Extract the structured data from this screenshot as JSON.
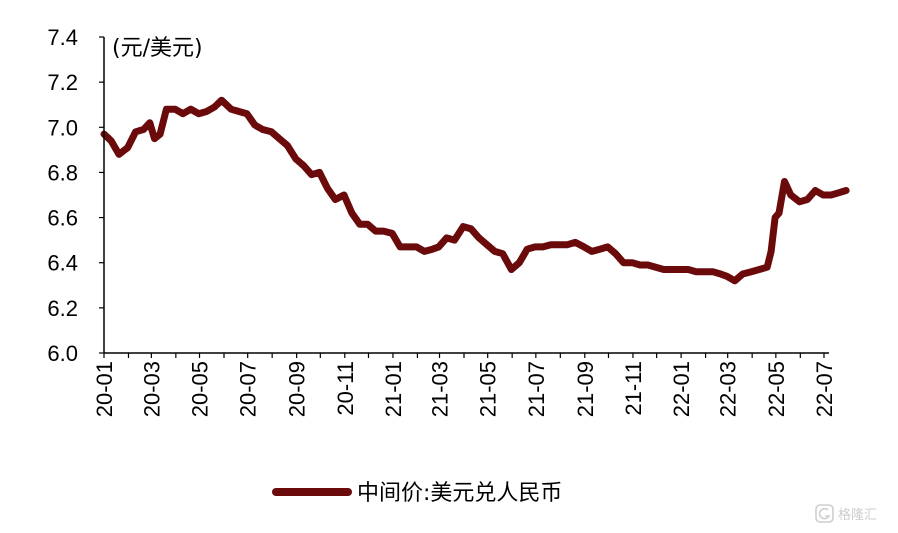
{
  "chart_data": {
    "type": "line",
    "title": "",
    "unit_label": "(元/美元)",
    "xlabel": "",
    "ylabel": "",
    "ylim": [
      6.0,
      7.4
    ],
    "y_ticks": [
      "6.0",
      "6.2",
      "6.4",
      "6.6",
      "6.8",
      "7.0",
      "7.2",
      "7.4"
    ],
    "x_ticks": [
      "20-01",
      "20-03",
      "20-05",
      "20-07",
      "20-09",
      "20-11",
      "21-01",
      "21-03",
      "21-05",
      "21-07",
      "21-09",
      "21-11",
      "22-01",
      "22-03",
      "22-05",
      "22-07"
    ],
    "grid": false,
    "legend_position": "bottom-center",
    "series": [
      {
        "name": "中间价:美元兑人民币",
        "color": "#6b0a0a",
        "points": [
          [
            "2020-01-01",
            6.97
          ],
          [
            "2020-01-10",
            6.94
          ],
          [
            "2020-01-20",
            6.88
          ],
          [
            "2020-01-31",
            6.91
          ],
          [
            "2020-02-10",
            6.98
          ],
          [
            "2020-02-20",
            6.99
          ],
          [
            "2020-02-28",
            7.02
          ],
          [
            "2020-03-05",
            6.95
          ],
          [
            "2020-03-12",
            6.97
          ],
          [
            "2020-03-20",
            7.08
          ],
          [
            "2020-03-31",
            7.08
          ],
          [
            "2020-04-10",
            7.06
          ],
          [
            "2020-04-20",
            7.08
          ],
          [
            "2020-04-30",
            7.06
          ],
          [
            "2020-05-10",
            7.07
          ],
          [
            "2020-05-20",
            7.09
          ],
          [
            "2020-05-29",
            7.12
          ],
          [
            "2020-06-10",
            7.08
          ],
          [
            "2020-06-20",
            7.07
          ],
          [
            "2020-06-30",
            7.06
          ],
          [
            "2020-07-10",
            7.01
          ],
          [
            "2020-07-20",
            6.99
          ],
          [
            "2020-07-31",
            6.98
          ],
          [
            "2020-08-10",
            6.95
          ],
          [
            "2020-08-20",
            6.92
          ],
          [
            "2020-08-31",
            6.86
          ],
          [
            "2020-09-10",
            6.83
          ],
          [
            "2020-09-20",
            6.79
          ],
          [
            "2020-09-30",
            6.8
          ],
          [
            "2020-10-10",
            6.73
          ],
          [
            "2020-10-20",
            6.68
          ],
          [
            "2020-10-31",
            6.7
          ],
          [
            "2020-11-10",
            6.62
          ],
          [
            "2020-11-20",
            6.57
          ],
          [
            "2020-11-30",
            6.57
          ],
          [
            "2020-12-10",
            6.54
          ],
          [
            "2020-12-20",
            6.54
          ],
          [
            "2020-12-31",
            6.53
          ],
          [
            "2021-01-10",
            6.47
          ],
          [
            "2021-01-20",
            6.47
          ],
          [
            "2021-01-31",
            6.47
          ],
          [
            "2021-02-10",
            6.45
          ],
          [
            "2021-02-20",
            6.46
          ],
          [
            "2021-02-28",
            6.47
          ],
          [
            "2021-03-10",
            6.51
          ],
          [
            "2021-03-20",
            6.5
          ],
          [
            "2021-03-31",
            6.56
          ],
          [
            "2021-04-10",
            6.55
          ],
          [
            "2021-04-20",
            6.51
          ],
          [
            "2021-04-30",
            6.48
          ],
          [
            "2021-05-10",
            6.45
          ],
          [
            "2021-05-20",
            6.44
          ],
          [
            "2021-05-31",
            6.37
          ],
          [
            "2021-06-10",
            6.4
          ],
          [
            "2021-06-20",
            6.46
          ],
          [
            "2021-06-30",
            6.47
          ],
          [
            "2021-07-10",
            6.47
          ],
          [
            "2021-07-20",
            6.48
          ],
          [
            "2021-07-31",
            6.48
          ],
          [
            "2021-08-10",
            6.48
          ],
          [
            "2021-08-20",
            6.49
          ],
          [
            "2021-08-31",
            6.47
          ],
          [
            "2021-09-10",
            6.45
          ],
          [
            "2021-09-20",
            6.46
          ],
          [
            "2021-09-30",
            6.47
          ],
          [
            "2021-10-10",
            6.44
          ],
          [
            "2021-10-20",
            6.4
          ],
          [
            "2021-10-31",
            6.4
          ],
          [
            "2021-11-10",
            6.39
          ],
          [
            "2021-11-20",
            6.39
          ],
          [
            "2021-11-30",
            6.38
          ],
          [
            "2021-12-10",
            6.37
          ],
          [
            "2021-12-20",
            6.37
          ],
          [
            "2021-12-31",
            6.37
          ],
          [
            "2022-01-10",
            6.37
          ],
          [
            "2022-01-20",
            6.36
          ],
          [
            "2022-01-31",
            6.36
          ],
          [
            "2022-02-10",
            6.36
          ],
          [
            "2022-02-20",
            6.35
          ],
          [
            "2022-02-28",
            6.34
          ],
          [
            "2022-03-10",
            6.32
          ],
          [
            "2022-03-20",
            6.35
          ],
          [
            "2022-03-31",
            6.36
          ],
          [
            "2022-04-10",
            6.37
          ],
          [
            "2022-04-20",
            6.38
          ],
          [
            "2022-04-25",
            6.45
          ],
          [
            "2022-04-30",
            6.6
          ],
          [
            "2022-05-05",
            6.62
          ],
          [
            "2022-05-12",
            6.76
          ],
          [
            "2022-05-20",
            6.7
          ],
          [
            "2022-05-31",
            6.67
          ],
          [
            "2022-06-10",
            6.68
          ],
          [
            "2022-06-20",
            6.72
          ],
          [
            "2022-06-30",
            6.7
          ],
          [
            "2022-07-10",
            6.7
          ],
          [
            "2022-07-20",
            6.71
          ],
          [
            "2022-07-29",
            6.72
          ]
        ]
      }
    ]
  },
  "watermark": {
    "icon": "gelonghui-logo-icon",
    "text": "格隆汇"
  }
}
